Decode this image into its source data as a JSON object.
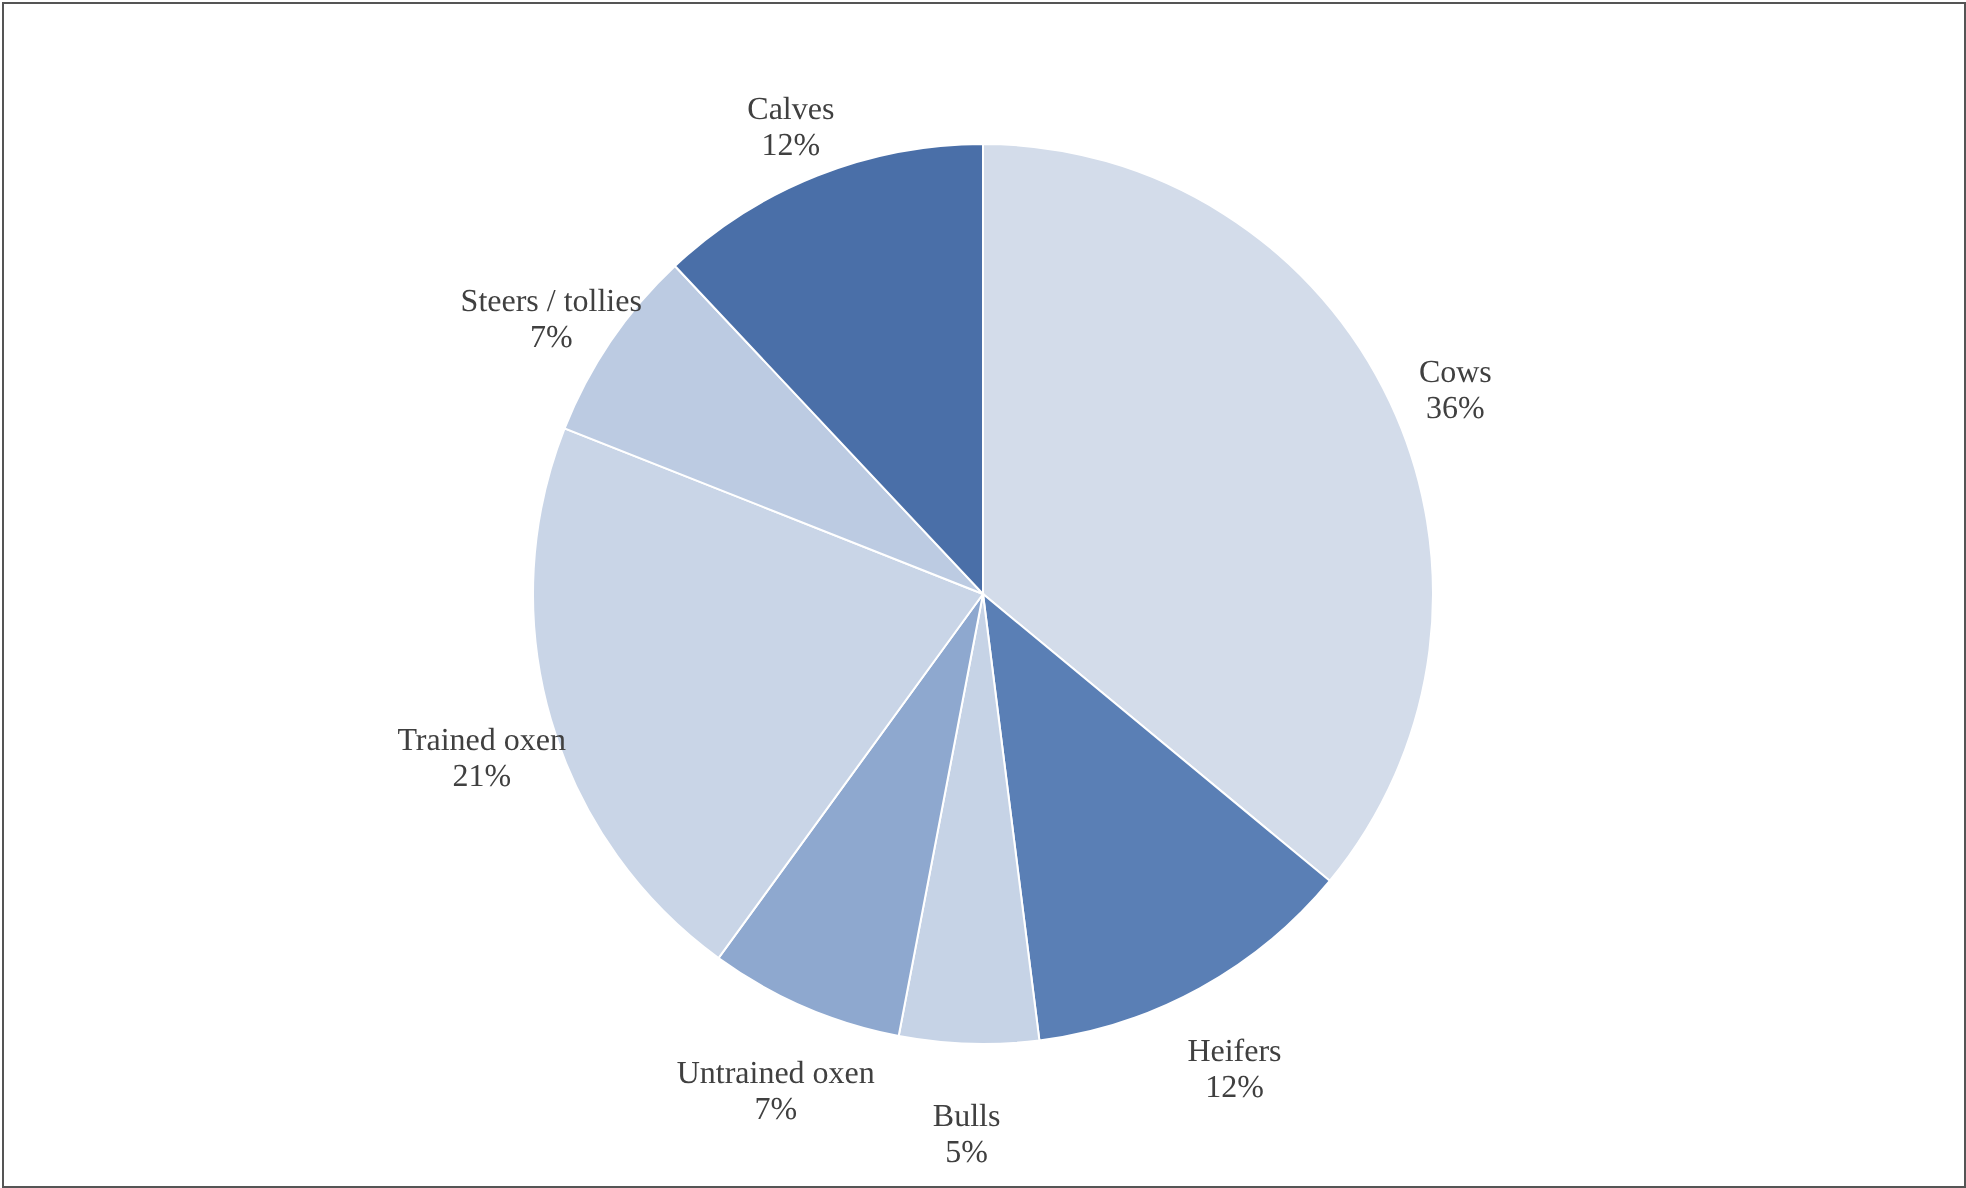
{
  "chart_data": {
    "type": "pie",
    "categories": [
      "Cows",
      "Heifers",
      "Bulls",
      "Untrained oxen",
      "Trained oxen",
      "Steers / tollies",
      "Calves"
    ],
    "values": [
      36,
      12,
      5,
      7,
      21,
      7,
      12
    ],
    "value_labels": [
      "36%",
      "12%",
      "5%",
      "7%",
      "21%",
      "7%",
      "12%"
    ],
    "colors": [
      "#d3dcea",
      "#5a7fb5",
      "#c6d3e6",
      "#8ea8cf",
      "#c9d5e7",
      "#bccbe2",
      "#4a6fa8"
    ]
  }
}
